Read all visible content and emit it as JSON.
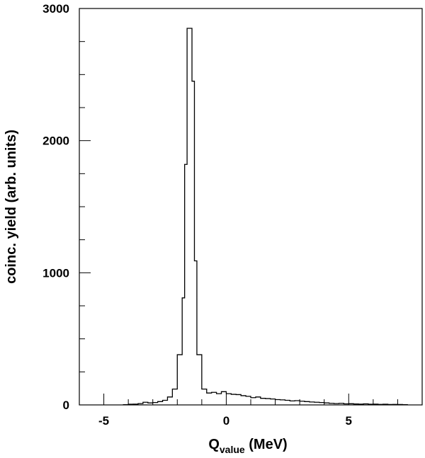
{
  "chart_data": {
    "type": "histogram",
    "xlabel": {
      "main": "Q",
      "sub": "value",
      "unit": " (MeV)"
    },
    "ylabel": "coinc. yield (arb. units)",
    "xlim": [
      -6,
      8
    ],
    "ylim": [
      0,
      3000
    ],
    "x_ticks": [
      -5,
      0,
      5
    ],
    "x_tick_labels": [
      "-5",
      "0",
      "5"
    ],
    "y_ticks": [
      0,
      1000,
      2000,
      3000
    ],
    "y_tick_labels": [
      "0",
      "1000",
      "2000",
      "3000"
    ],
    "x_minor_step": 1,
    "y_minor_step": 250,
    "grid": false,
    "line_color": "#000000",
    "bins": [
      {
        "x0": -4.2,
        "x1": -4.0,
        "y": 2
      },
      {
        "x0": -4.0,
        "x1": -3.8,
        "y": 5
      },
      {
        "x0": -3.8,
        "x1": -3.6,
        "y": 6
      },
      {
        "x0": -3.6,
        "x1": -3.4,
        "y": 10
      },
      {
        "x0": -3.4,
        "x1": -3.2,
        "y": 20
      },
      {
        "x0": -3.2,
        "x1": -3.0,
        "y": 15
      },
      {
        "x0": -3.0,
        "x1": -2.8,
        "y": 18
      },
      {
        "x0": -2.8,
        "x1": -2.6,
        "y": 25
      },
      {
        "x0": -2.6,
        "x1": -2.4,
        "y": 35
      },
      {
        "x0": -2.4,
        "x1": -2.2,
        "y": 60
      },
      {
        "x0": -2.2,
        "x1": -2.0,
        "y": 120
      },
      {
        "x0": -2.0,
        "x1": -1.8,
        "y": 380
      },
      {
        "x0": -1.8,
        "x1": -1.7,
        "y": 810
      },
      {
        "x0": -1.7,
        "x1": -1.6,
        "y": 1820
      },
      {
        "x0": -1.6,
        "x1": -1.4,
        "y": 2850
      },
      {
        "x0": -1.4,
        "x1": -1.3,
        "y": 2450
      },
      {
        "x0": -1.3,
        "x1": -1.2,
        "y": 1090
      },
      {
        "x0": -1.2,
        "x1": -1.0,
        "y": 380
      },
      {
        "x0": -1.0,
        "x1": -0.8,
        "y": 120
      },
      {
        "x0": -0.8,
        "x1": -0.6,
        "y": 90
      },
      {
        "x0": -0.6,
        "x1": -0.4,
        "y": 95
      },
      {
        "x0": -0.4,
        "x1": -0.2,
        "y": 85
      },
      {
        "x0": -0.2,
        "x1": 0.0,
        "y": 100
      },
      {
        "x0": 0.0,
        "x1": 0.2,
        "y": 85
      },
      {
        "x0": 0.2,
        "x1": 0.4,
        "y": 80
      },
      {
        "x0": 0.4,
        "x1": 0.6,
        "y": 78
      },
      {
        "x0": 0.6,
        "x1": 0.8,
        "y": 70
      },
      {
        "x0": 0.8,
        "x1": 1.0,
        "y": 65
      },
      {
        "x0": 1.0,
        "x1": 1.2,
        "y": 55
      },
      {
        "x0": 1.2,
        "x1": 1.4,
        "y": 60
      },
      {
        "x0": 1.4,
        "x1": 1.6,
        "y": 50
      },
      {
        "x0": 1.6,
        "x1": 1.8,
        "y": 48
      },
      {
        "x0": 1.8,
        "x1": 2.0,
        "y": 45
      },
      {
        "x0": 2.0,
        "x1": 2.2,
        "y": 40
      },
      {
        "x0": 2.2,
        "x1": 2.4,
        "y": 38
      },
      {
        "x0": 2.4,
        "x1": 2.6,
        "y": 35
      },
      {
        "x0": 2.6,
        "x1": 2.8,
        "y": 30
      },
      {
        "x0": 2.8,
        "x1": 3.0,
        "y": 32
      },
      {
        "x0": 3.0,
        "x1": 3.2,
        "y": 28
      },
      {
        "x0": 3.2,
        "x1": 3.4,
        "y": 25
      },
      {
        "x0": 3.4,
        "x1": 3.6,
        "y": 22
      },
      {
        "x0": 3.6,
        "x1": 3.8,
        "y": 20
      },
      {
        "x0": 3.8,
        "x1": 4.0,
        "y": 18
      },
      {
        "x0": 4.0,
        "x1": 4.2,
        "y": 15
      },
      {
        "x0": 4.2,
        "x1": 4.4,
        "y": 12
      },
      {
        "x0": 4.4,
        "x1": 4.6,
        "y": 10
      },
      {
        "x0": 4.6,
        "x1": 4.8,
        "y": 12
      },
      {
        "x0": 4.8,
        "x1": 5.0,
        "y": 8
      },
      {
        "x0": 5.0,
        "x1": 5.2,
        "y": 9
      },
      {
        "x0": 5.2,
        "x1": 5.4,
        "y": 7
      },
      {
        "x0": 5.4,
        "x1": 5.6,
        "y": 6
      },
      {
        "x0": 5.6,
        "x1": 5.8,
        "y": 8
      },
      {
        "x0": 5.8,
        "x1": 6.0,
        "y": 5
      },
      {
        "x0": 6.0,
        "x1": 6.2,
        "y": 6
      },
      {
        "x0": 6.2,
        "x1": 6.4,
        "y": 4
      },
      {
        "x0": 6.4,
        "x1": 6.6,
        "y": 5
      },
      {
        "x0": 6.6,
        "x1": 6.8,
        "y": 3
      },
      {
        "x0": 6.8,
        "x1": 7.0,
        "y": 4
      },
      {
        "x0": 7.0,
        "x1": 7.2,
        "y": 3
      },
      {
        "x0": 7.2,
        "x1": 7.4,
        "y": 2
      }
    ]
  }
}
